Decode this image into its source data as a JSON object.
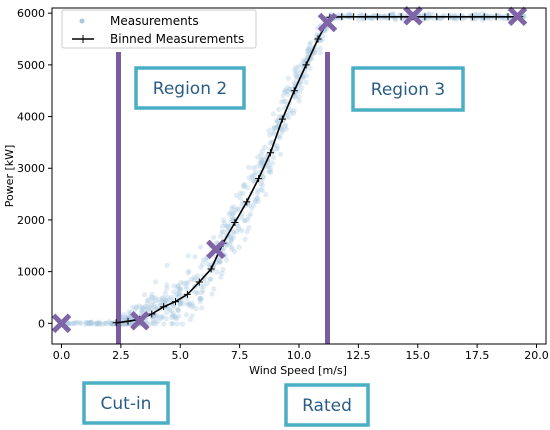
{
  "chart_data": {
    "type": "scatter",
    "title": "",
    "xlabel": "Wind Speed [m/s]",
    "ylabel": "Power [kW]",
    "xlim": [
      -0.4,
      20.4
    ],
    "ylim": [
      -400,
      6100
    ],
    "xticks": [
      0.0,
      2.5,
      5.0,
      7.5,
      10.0,
      12.5,
      15.0,
      17.5,
      20.0
    ],
    "xtick_labels": [
      "0.0",
      "2.5",
      "5.0",
      "7.5",
      "10.0",
      "12.5",
      "15.0",
      "17.5",
      "20.0"
    ],
    "yticks": [
      0,
      1000,
      2000,
      3000,
      4000,
      5000,
      6000
    ],
    "ytick_labels": [
      "0",
      "1000",
      "2000",
      "3000",
      "4000",
      "5000",
      "6000"
    ],
    "grid": false,
    "legend": {
      "position": "top-left",
      "entries": [
        "Measurements",
        "Binned Measurements"
      ]
    },
    "series": [
      {
        "name": "Binned Measurements",
        "type": "line",
        "marker": "+",
        "color": "#000000",
        "x": [
          2.3,
          2.8,
          3.3,
          3.8,
          4.3,
          4.8,
          5.3,
          5.8,
          6.3,
          6.8,
          7.3,
          7.8,
          8.3,
          8.8,
          9.3,
          9.8,
          10.3,
          10.8,
          11.3,
          11.8,
          12.3,
          12.8,
          13.3,
          13.8,
          14.3,
          14.8,
          15.3,
          15.8,
          16.3,
          16.8,
          17.3,
          17.8,
          18.3,
          18.8,
          19.3
        ],
        "y": [
          10,
          40,
          80,
          180,
          320,
          420,
          560,
          800,
          1050,
          1550,
          1950,
          2350,
          2800,
          3300,
          3950,
          4500,
          5000,
          5500,
          5920,
          5930,
          5930,
          5930,
          5930,
          5930,
          5930,
          5930,
          5930,
          5930,
          5930,
          5930,
          5930,
          5930,
          5930,
          5930,
          5930
        ]
      },
      {
        "name": "Measurements",
        "type": "scatter",
        "color": "#a9c8e0",
        "description": "dense cloud of light-blue points scattered around the binned curve from 0 to 19.5 m/s"
      }
    ],
    "vlines": [
      {
        "x": 2.4,
        "color": "#7a5ba0"
      },
      {
        "x": 11.2,
        "color": "#7a5ba0"
      }
    ],
    "markers_x": {
      "color": "#7f64a8",
      "points": [
        {
          "x": 0.0,
          "y": 0
        },
        {
          "x": 3.3,
          "y": 50
        },
        {
          "x": 6.5,
          "y": 1430
        },
        {
          "x": 11.2,
          "y": 5820
        },
        {
          "x": 14.8,
          "y": 5950
        },
        {
          "x": 19.2,
          "y": 5940
        }
      ]
    },
    "annotations": [
      {
        "id": "region2",
        "text": "Region 2"
      },
      {
        "id": "region3",
        "text": "Region 3"
      },
      {
        "id": "cutin",
        "text": "Cut-in"
      },
      {
        "id": "rated",
        "text": "Rated"
      }
    ],
    "colors": {
      "box_border": "#4aaec4",
      "box_text": "#2a5d86",
      "vline": "#7a5ba0",
      "x_marker": "#7f64a8",
      "scatter": "#a9c8e0"
    }
  }
}
